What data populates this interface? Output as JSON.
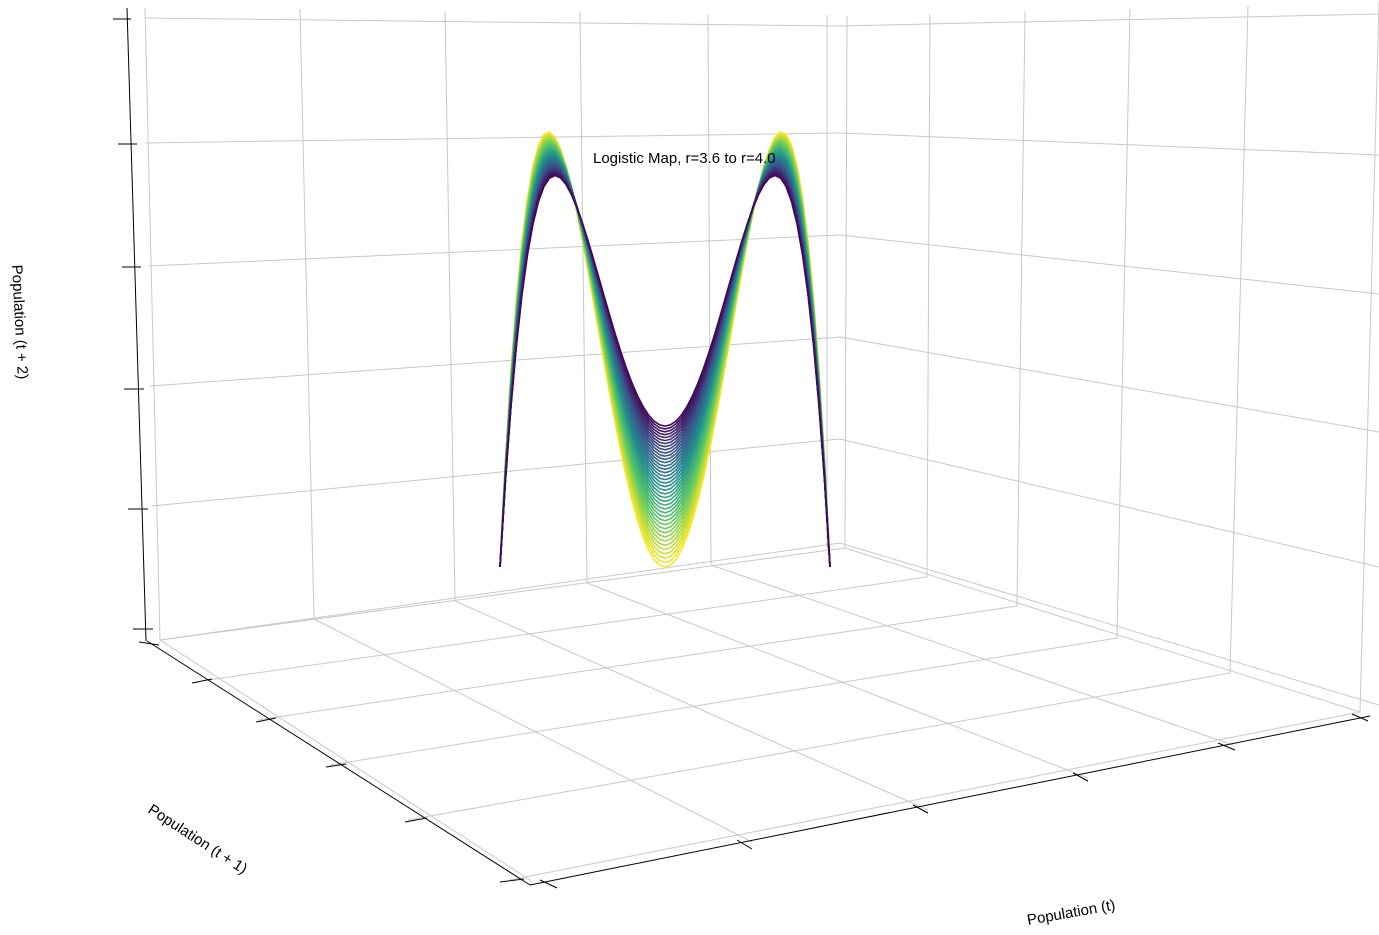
{
  "chart_data": {
    "type": "scatter",
    "subtype": "3d-scatter",
    "title": "Logistic Map, r=3.6 to r=4.0",
    "xlabel": "Population (t)",
    "ylabel": "Population (t + 1)",
    "zlabel": "Population (t + 2)",
    "r_range": [
      3.6,
      4.0
    ],
    "colormap": [
      "#440154",
      "#3b528b",
      "#21918c",
      "#5ec962",
      "#fde725"
    ],
    "grid": true,
    "tick_labels_visible": false
  }
}
